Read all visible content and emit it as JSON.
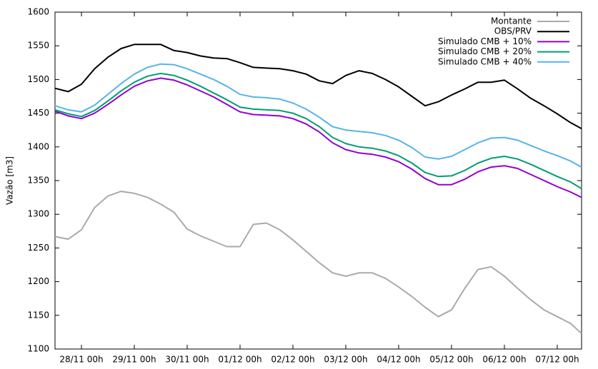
{
  "chart_data": {
    "type": "line",
    "ylabel": "Vazão [m3]",
    "x": [
      -0.5,
      -0.25,
      0,
      0.25,
      0.5,
      0.75,
      1,
      1.25,
      1.5,
      1.75,
      2,
      2.25,
      2.5,
      2.75,
      3,
      3.25,
      3.5,
      3.75,
      4,
      4.25,
      4.5,
      4.75,
      5,
      5.25,
      5.5,
      5.75,
      6,
      6.25,
      6.5,
      6.75,
      7,
      7.25,
      7.5,
      7.75,
      8,
      8.25,
      8.5,
      8.75,
      9,
      9.25,
      9.46
    ],
    "xlim": [
      -0.5,
      9.46
    ],
    "xticks": [
      {
        "value": 0,
        "label": "28/11 00h"
      },
      {
        "value": 1,
        "label": "29/11 00h"
      },
      {
        "value": 2,
        "label": "30/11 00h"
      },
      {
        "value": 3,
        "label": "01/12 00h"
      },
      {
        "value": 4,
        "label": "02/12 00h"
      },
      {
        "value": 5,
        "label": "03/12 00h"
      },
      {
        "value": 6,
        "label": "04/12 00h"
      },
      {
        "value": 7,
        "label": "05/12 00h"
      },
      {
        "value": 8,
        "label": "06/12 00h"
      },
      {
        "value": 9,
        "label": "07/12 00h"
      }
    ],
    "ylim": [
      1100,
      1600
    ],
    "yticks": [
      1100,
      1150,
      1200,
      1250,
      1300,
      1350,
      1400,
      1450,
      1500,
      1550,
      1600
    ],
    "grid": false,
    "legend": "top right",
    "series": [
      {
        "name": "Montante",
        "color": "#aaaaaa",
        "values": [
          1267,
          1263,
          1277,
          1310,
          1327,
          1334,
          1331,
          1325,
          1315,
          1303,
          1278,
          1268,
          1260,
          1252,
          1252,
          1285,
          1287,
          1277,
          1262,
          1245,
          1228,
          1213,
          1208,
          1213,
          1213,
          1205,
          1192,
          1178,
          1162,
          1148,
          1158,
          1190,
          1218,
          1222,
          1208,
          1190,
          1173,
          1158,
          1148,
          1138,
          1123
        ]
      },
      {
        "name": "OBS/PRV",
        "color": "#000000",
        "values": [
          1487,
          1482,
          1493,
          1516,
          1533,
          1546,
          1552,
          1552,
          1552,
          1543,
          1540,
          1535,
          1532,
          1531,
          1525,
          1518,
          1517,
          1516,
          1513,
          1508,
          1498,
          1494,
          1506,
          1513,
          1509,
          1500,
          1489,
          1475,
          1461,
          1467,
          1477,
          1486,
          1496,
          1496,
          1499,
          1486,
          1472,
          1461,
          1449,
          1436,
          1427
        ]
      },
      {
        "name": "Simulado CMB + 10%",
        "color": "#9400d3",
        "values": [
          1453,
          1446,
          1442,
          1450,
          1463,
          1477,
          1490,
          1498,
          1502,
          1499,
          1492,
          1483,
          1474,
          1463,
          1452,
          1448,
          1447,
          1446,
          1442,
          1434,
          1422,
          1406,
          1396,
          1391,
          1389,
          1385,
          1378,
          1367,
          1353,
          1344,
          1344,
          1352,
          1363,
          1370,
          1372,
          1368,
          1359,
          1350,
          1341,
          1333,
          1325
        ]
      },
      {
        "name": "Simulado CMB + 20%",
        "color": "#009e73",
        "values": [
          1455,
          1449,
          1445,
          1454,
          1468,
          1483,
          1496,
          1505,
          1509,
          1506,
          1499,
          1490,
          1480,
          1470,
          1459,
          1456,
          1455,
          1454,
          1450,
          1442,
          1430,
          1414,
          1405,
          1400,
          1398,
          1394,
          1387,
          1376,
          1362,
          1356,
          1357,
          1365,
          1376,
          1383,
          1386,
          1382,
          1374,
          1365,
          1356,
          1348,
          1338
        ]
      },
      {
        "name": "Simulado CMB + 40%",
        "color": "#56b4e9",
        "values": [
          1461,
          1455,
          1452,
          1462,
          1478,
          1494,
          1508,
          1518,
          1523,
          1522,
          1516,
          1508,
          1500,
          1490,
          1478,
          1474,
          1473,
          1471,
          1465,
          1456,
          1444,
          1430,
          1425,
          1423,
          1421,
          1417,
          1410,
          1399,
          1385,
          1382,
          1386,
          1396,
          1406,
          1413,
          1414,
          1410,
          1402,
          1394,
          1387,
          1379,
          1370
        ]
      }
    ]
  }
}
